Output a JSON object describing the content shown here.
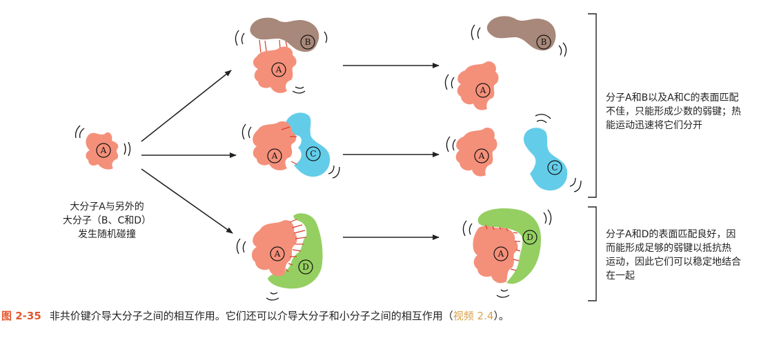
{
  "colors": {
    "A": "#f4907a",
    "B": "#a8887a",
    "C": "#63cde9",
    "D": "#95cf62",
    "bond": "#d83a2a",
    "figure_number": "#e4572e",
    "video_link": "#d8a04a"
  },
  "molecule_labels": {
    "A": "A",
    "B": "B",
    "C": "C",
    "D": "D"
  },
  "start_label": [
    "大分子A与另外的",
    "大分子（B、C和D）",
    "发生随机碰撞"
  ],
  "group1_description": [
    "分子A和B以及A和C的表面匹配",
    "不佳，只能形成少数的弱键；热",
    "能运动迅速将它们分开"
  ],
  "group2_description": [
    "分子A和D的表面匹配良好，因",
    "而能形成足够的弱键以抵抗热",
    "运动，因此它们可以稳定地结合",
    "在一起"
  ],
  "caption": {
    "figure_number": "图 2-35",
    "text": "非共价键介导大分子之间的相互作用。它们还可以介导大分子和小分子之间的相互作用（",
    "video_ref": "视频 2.4",
    "closing": "）。"
  }
}
